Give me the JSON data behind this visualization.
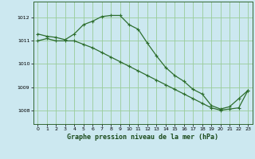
{
  "title": "Graphe pression niveau de la mer (hPa)",
  "background_color": "#cce8f0",
  "grid_color": "#99cc99",
  "line_color": "#2d6e2d",
  "marker_color": "#2d6e2d",
  "xlim": [
    -0.5,
    23.5
  ],
  "ylim": [
    1007.4,
    1012.7
  ],
  "yticks": [
    1008,
    1009,
    1010,
    1011,
    1012
  ],
  "xticks": [
    0,
    1,
    2,
    3,
    4,
    5,
    6,
    7,
    8,
    9,
    10,
    11,
    12,
    13,
    14,
    15,
    16,
    17,
    18,
    19,
    20,
    21,
    22,
    23
  ],
  "series1_x": [
    0,
    1,
    2,
    3,
    4,
    5,
    6,
    7,
    8,
    9,
    10,
    11,
    12,
    13,
    14,
    15,
    16,
    17,
    18,
    19,
    20,
    21,
    22,
    23
  ],
  "series1_y": [
    1011.3,
    1011.2,
    1011.15,
    1011.05,
    1011.3,
    1011.7,
    1011.85,
    1012.05,
    1012.1,
    1012.1,
    1011.7,
    1011.5,
    1010.9,
    1010.35,
    1009.85,
    1009.5,
    1009.25,
    1008.9,
    1008.7,
    1008.2,
    1008.05,
    1008.15,
    1008.5,
    1008.85
  ],
  "series2_x": [
    0,
    1,
    2,
    3,
    4,
    5,
    6,
    7,
    8,
    9,
    10,
    11,
    12,
    13,
    14,
    15,
    16,
    17,
    18,
    19,
    20,
    21,
    22,
    23
  ],
  "series2_y": [
    1011.0,
    1011.1,
    1011.0,
    1011.0,
    1011.0,
    1010.85,
    1010.7,
    1010.5,
    1010.3,
    1010.1,
    1009.9,
    1009.7,
    1009.5,
    1009.3,
    1009.1,
    1008.9,
    1008.7,
    1008.5,
    1008.3,
    1008.1,
    1008.0,
    1008.05,
    1008.1,
    1008.85
  ]
}
